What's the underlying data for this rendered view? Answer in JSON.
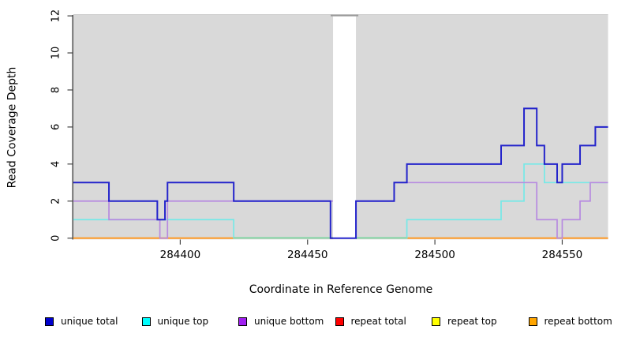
{
  "figure": {
    "x_title": "Coordinate in Reference Genome",
    "y_title": "Read Coverage Depth"
  },
  "legend": {
    "items": [
      {
        "label": "unique total",
        "color": "#0000cd"
      },
      {
        "label": "unique top",
        "color": "#00ffff"
      },
      {
        "label": "unique bottom",
        "color": "#a020f0"
      },
      {
        "label": "repeat total",
        "color": "#ff0000"
      },
      {
        "label": "repeat top",
        "color": "#ffff00"
      },
      {
        "label": "repeat bottom",
        "color": "#ffa500"
      }
    ]
  },
  "chart_data": {
    "type": "line",
    "subtype": "step-coverage",
    "title": "",
    "xlabel": "Coordinate in Reference Genome",
    "ylabel": "Read Coverage Depth",
    "xlim": [
      284358,
      284568
    ],
    "ylim": [
      0,
      12
    ],
    "grid": false,
    "background": "#d9d9d9",
    "x_ticks": [
      {
        "value": 284400,
        "label": "284400"
      },
      {
        "value": 284450,
        "label": "284450"
      },
      {
        "value": 284500,
        "label": "284500"
      },
      {
        "value": 284550,
        "label": "284550"
      }
    ],
    "y_ticks": [
      {
        "value": 0,
        "label": "0"
      },
      {
        "value": 2,
        "label": "2"
      },
      {
        "value": 4,
        "label": "4"
      },
      {
        "value": 6,
        "label": "6"
      },
      {
        "value": 8,
        "label": "8"
      },
      {
        "value": 10,
        "label": "10"
      },
      {
        "value": 12,
        "label": "12"
      }
    ],
    "gap_region": {
      "start": 284460,
      "end": 284469,
      "fill": "#ffffff",
      "top_edge_color": "#9a9a9a"
    },
    "series": [
      {
        "name": "repeat total",
        "color": "#ff0000",
        "line_color": "#dd0000",
        "width": 1.6,
        "end": 284568,
        "steps": [
          [
            284358,
            0
          ]
        ]
      },
      {
        "name": "repeat top",
        "color": "#ffff00",
        "line_color": "#f2f200",
        "width": 1.6,
        "end": 284568,
        "steps": [
          [
            284358,
            0
          ]
        ]
      },
      {
        "name": "repeat bottom",
        "color": "#ffa500",
        "line_color": "#ff9d30",
        "width": 2,
        "end": 284568,
        "steps": [
          [
            284358,
            0
          ]
        ]
      },
      {
        "name": "unique top",
        "color": "#00ffff",
        "line_color": "#76e9e7",
        "width": 1.7,
        "end": 284568,
        "steps": [
          [
            284358,
            1
          ],
          [
            284421,
            0
          ],
          [
            284489,
            1
          ],
          [
            284526,
            2
          ],
          [
            284535,
            4
          ],
          [
            284543,
            3
          ]
        ]
      },
      {
        "name": "unique bottom",
        "color": "#a020f0",
        "line_color": "#b78ae0",
        "width": 1.7,
        "end": 284568,
        "steps": [
          [
            284358,
            2
          ],
          [
            284372,
            1
          ],
          [
            284392,
            0
          ],
          [
            284395,
            2
          ],
          [
            284484,
            3
          ],
          [
            284540,
            1
          ],
          [
            284548,
            0
          ],
          [
            284550,
            1
          ],
          [
            284557,
            2
          ],
          [
            284561,
            3
          ]
        ]
      },
      {
        "name": "unique total",
        "color": "#0000cd",
        "line_color": "#2424cb",
        "width": 2,
        "end": 284568,
        "steps": [
          [
            284358,
            3
          ],
          [
            284372,
            2
          ],
          [
            284391,
            1
          ],
          [
            284394,
            2
          ],
          [
            284395,
            3
          ],
          [
            284421,
            2
          ],
          [
            284459,
            0
          ],
          [
            284469,
            2
          ],
          [
            284484,
            3
          ],
          [
            284489,
            4
          ],
          [
            284526,
            5
          ],
          [
            284535,
            7
          ],
          [
            284540,
            5
          ],
          [
            284543,
            4
          ],
          [
            284548,
            3
          ],
          [
            284550,
            4
          ],
          [
            284557,
            5
          ],
          [
            284563,
            6
          ]
        ]
      }
    ],
    "overlays": [
      {
        "from": 284421,
        "to": 284489,
        "value": 0,
        "color": "#8dd4a8",
        "note": "unique-top-at-zero tint"
      }
    ],
    "legend_position": "bottom"
  }
}
